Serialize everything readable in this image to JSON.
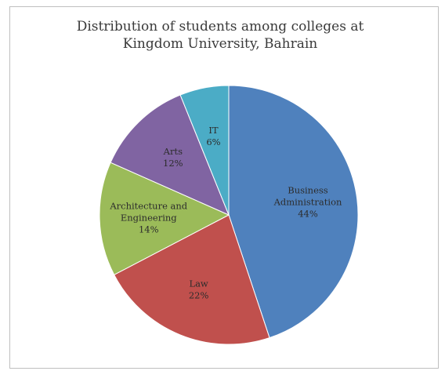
{
  "chart_data": {
    "type": "pie",
    "title_lines": [
      "Distribution of students among colleges at",
      "Kingdom University, Bahrain"
    ],
    "slices": [
      {
        "label_lines": [
          "Business",
          "Administration"
        ],
        "value": 44,
        "value_label": "44%",
        "color": "#4f81bd"
      },
      {
        "label_lines": [
          "Law"
        ],
        "value": 22,
        "value_label": "22%",
        "color": "#c0504d"
      },
      {
        "label_lines": [
          "Architecture and",
          "Engineering"
        ],
        "value": 14,
        "value_label": "14%",
        "color": "#9bbb59"
      },
      {
        "label_lines": [
          "Arts"
        ],
        "value": 12,
        "value_label": "12%",
        "color": "#8064a2"
      },
      {
        "label_lines": [
          "IT"
        ],
        "value": 6,
        "value_label": "6%",
        "color": "#4bacc6"
      }
    ]
  }
}
